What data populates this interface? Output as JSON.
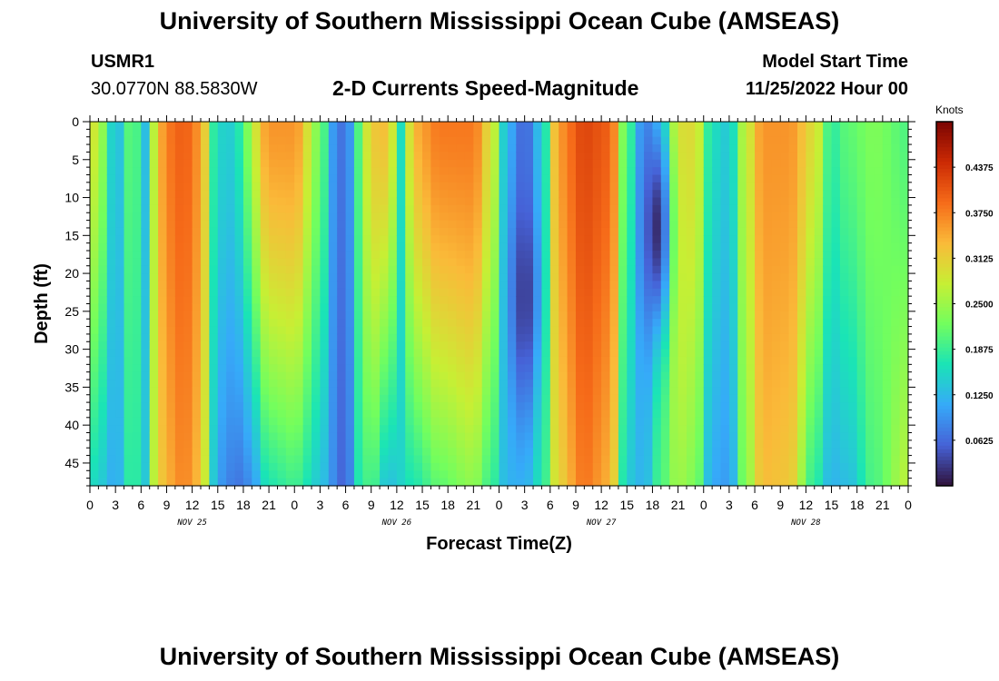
{
  "header": {
    "title": "University of Southern Mississippi Ocean Cube (AMSEAS)",
    "station_id": "USMR1",
    "location": "30.0770N  88.5830W",
    "plot_title": "2-D Currents Speed-Magnitude",
    "model_start_label": "Model Start Time",
    "model_start_value": "11/25/2022 Hour 00"
  },
  "footer": {
    "title": "University of Southern Mississippi Ocean Cube (AMSEAS)"
  },
  "chart_data": {
    "type": "heatmap",
    "title": "2-D Currents Speed-Magnitude",
    "xlabel": "Forecast Time(Z)",
    "ylabel": "Depth (ft)",
    "xlim": [
      0,
      96
    ],
    "ylim": [
      0,
      48
    ],
    "x_tick_labels": [
      "0",
      "3",
      "6",
      "9",
      "12",
      "15",
      "18",
      "21",
      "0",
      "3",
      "6",
      "9",
      "12",
      "15",
      "18",
      "21",
      "0",
      "3",
      "6",
      "9",
      "12",
      "15",
      "18",
      "21",
      "0",
      "3",
      "6",
      "9",
      "12",
      "15",
      "18",
      "21",
      "0"
    ],
    "y_ticks": [
      0,
      5,
      10,
      15,
      20,
      25,
      30,
      35,
      40,
      45
    ],
    "date_labels": [
      {
        "label": "NOV 25",
        "hour": 12
      },
      {
        "label": "NOV 26",
        "hour": 36
      },
      {
        "label": "NOV 27",
        "hour": 60
      },
      {
        "label": "NOV 28",
        "hour": 84
      }
    ],
    "colorbar": {
      "unit": "Knots",
      "range": [
        0,
        0.5
      ],
      "ticks": [
        "0.0625",
        "0.1250",
        "0.1875",
        "0.2500",
        "0.3125",
        "0.3750",
        "0.4375"
      ],
      "tick_values": [
        0.0625,
        0.125,
        0.1875,
        0.25,
        0.3125,
        0.375,
        0.4375
      ],
      "colormap": [
        "#30123b",
        "#4662d7",
        "#36aaf9",
        "#1ae4b6",
        "#72fe5e",
        "#c7ef34",
        "#faba39",
        "#f66b19",
        "#cb2a04",
        "#7a0403"
      ]
    },
    "speed_profile_by_hour": [
      {
        "hour": 0,
        "surface": 0.3,
        "bottom": 0.16
      },
      {
        "hour": 1.5,
        "surface": 0.24,
        "bottom": 0.14
      },
      {
        "hour": 3,
        "surface": 0.12,
        "bottom": 0.11
      },
      {
        "hour": 5,
        "surface": 0.22,
        "bottom": 0.19
      },
      {
        "hour": 6.5,
        "surface": 0.13,
        "bottom": 0.14
      },
      {
        "hour": 7.5,
        "surface": 0.27,
        "bottom": 0.27
      },
      {
        "hour": 9,
        "surface": 0.38,
        "bottom": 0.34
      },
      {
        "hour": 11,
        "surface": 0.4,
        "bottom": 0.37
      },
      {
        "hour": 13,
        "surface": 0.36,
        "bottom": 0.33
      },
      {
        "hour": 14.5,
        "surface": 0.18,
        "bottom": 0.14
      },
      {
        "hour": 16,
        "surface": 0.14,
        "bottom": 0.08
      },
      {
        "hour": 18,
        "surface": 0.18,
        "bottom": 0.07
      },
      {
        "hour": 19,
        "surface": 0.28,
        "bottom": 0.1
      },
      {
        "hour": 21,
        "surface": 0.36,
        "bottom": 0.17
      },
      {
        "hour": 24,
        "surface": 0.36,
        "bottom": 0.19
      },
      {
        "hour": 27,
        "surface": 0.23,
        "bottom": 0.14
      },
      {
        "hour": 28.5,
        "surface": 0.1,
        "bottom": 0.09
      },
      {
        "hour": 30,
        "surface": 0.06,
        "bottom": 0.05
      },
      {
        "hour": 31.5,
        "surface": 0.2,
        "bottom": 0.17
      },
      {
        "hour": 33,
        "surface": 0.32,
        "bottom": 0.2
      },
      {
        "hour": 35,
        "surface": 0.33,
        "bottom": 0.13
      },
      {
        "hour": 36.5,
        "surface": 0.16,
        "bottom": 0.15
      },
      {
        "hour": 38,
        "surface": 0.34,
        "bottom": 0.17
      },
      {
        "hour": 41,
        "surface": 0.38,
        "bottom": 0.21
      },
      {
        "hour": 45,
        "surface": 0.38,
        "bottom": 0.24
      },
      {
        "hour": 47,
        "surface": 0.3,
        "bottom": 0.19
      },
      {
        "hour": 49,
        "surface": 0.12,
        "bottom": 0.12
      },
      {
        "hour": 51,
        "surface": 0.06,
        "bottom": 0.12
      },
      {
        "hour": 53,
        "surface": 0.14,
        "bottom": 0.17
      },
      {
        "hour": 55,
        "surface": 0.36,
        "bottom": 0.31
      },
      {
        "hour": 58,
        "surface": 0.42,
        "bottom": 0.38
      },
      {
        "hour": 61,
        "surface": 0.4,
        "bottom": 0.34
      },
      {
        "hour": 63,
        "surface": 0.2,
        "bottom": 0.14
      },
      {
        "hour": 65,
        "surface": 0.09,
        "bottom": 0.12
      },
      {
        "hour": 67,
        "surface": 0.18,
        "bottom": 0.2
      },
      {
        "hour": 69,
        "surface": 0.3,
        "bottom": 0.25
      },
      {
        "hour": 71,
        "surface": 0.3,
        "bottom": 0.23
      },
      {
        "hour": 73,
        "surface": 0.16,
        "bottom": 0.11
      },
      {
        "hour": 75,
        "surface": 0.14,
        "bottom": 0.1
      },
      {
        "hour": 77,
        "surface": 0.28,
        "bottom": 0.24
      },
      {
        "hour": 79,
        "surface": 0.36,
        "bottom": 0.33
      },
      {
        "hour": 82,
        "surface": 0.36,
        "bottom": 0.32
      },
      {
        "hour": 85,
        "surface": 0.3,
        "bottom": 0.18
      },
      {
        "hour": 87,
        "surface": 0.18,
        "bottom": 0.12
      },
      {
        "hour": 89,
        "surface": 0.21,
        "bottom": 0.13
      },
      {
        "hour": 92,
        "surface": 0.23,
        "bottom": 0.2
      },
      {
        "hour": 96,
        "surface": 0.2,
        "bottom": 0.27
      }
    ],
    "low_speed_cores": [
      {
        "hour": 51,
        "depth": 23,
        "value": 0.03
      },
      {
        "hour": 66.5,
        "depth": 14,
        "value": 0.02
      }
    ]
  }
}
